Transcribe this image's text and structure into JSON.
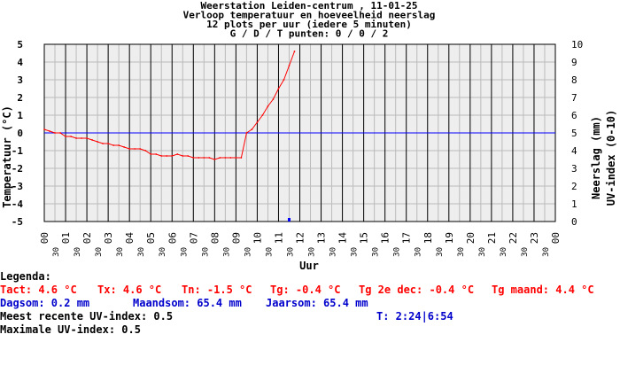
{
  "chart_data": {
    "type": "line",
    "title_lines": [
      "Weerstation Leiden-centrum , 11-01-25",
      "Verloop temperatuur en hoeveelheid neerslag",
      "12 plots per uur (iedere 5 minuten)",
      "G / D / T punten: 0 / 0 / 2"
    ],
    "xlabel": "Uur",
    "ylabel_left": "Temperatuur (°C)",
    "ylabel_right_1": "Neerslag (mm)",
    "ylabel_right_2": "UV-index (0-10)",
    "y_left_range": [
      -5,
      5
    ],
    "y_right_range": [
      0,
      10
    ],
    "y_left_ticks": [
      "5",
      "4",
      "3",
      "2",
      "1",
      "0",
      "-1",
      "-2",
      "-3",
      "-4",
      "-5"
    ],
    "y_right_ticks": [
      "10",
      "9",
      "8",
      "7",
      "6",
      "5",
      "4",
      "3",
      "2",
      "1",
      "0"
    ],
    "x_range_hours": [
      0,
      24
    ],
    "x_hour_labels": [
      "00",
      "01",
      "02",
      "03",
      "04",
      "05",
      "06",
      "07",
      "08",
      "09",
      "10",
      "11",
      "12",
      "13",
      "14",
      "15",
      "16",
      "17",
      "18",
      "19",
      "20",
      "21",
      "22",
      "23",
      "00"
    ],
    "x_half_label": "30",
    "grid": true,
    "zero_line_color": "#0000ff",
    "temperature_color": "#ff0000",
    "precip_color": "#0000ff",
    "series": [
      {
        "name": "Temperatuur",
        "unit": "°C",
        "x_hours": [
          0,
          0.25,
          0.5,
          0.75,
          1.0,
          1.25,
          1.5,
          1.75,
          2.0,
          2.25,
          2.5,
          2.75,
          3.0,
          3.25,
          3.5,
          3.75,
          4.0,
          4.25,
          4.5,
          4.75,
          5.0,
          5.25,
          5.5,
          5.75,
          6.0,
          6.25,
          6.5,
          6.75,
          7.0,
          7.25,
          7.5,
          7.75,
          8.0,
          8.25,
          8.5,
          8.75,
          9.0,
          9.25,
          9.5,
          9.75,
          10.0,
          10.25,
          10.5,
          10.75,
          11.0,
          11.25,
          11.5,
          11.75
        ],
        "values": [
          0.2,
          0.1,
          0.0,
          0.0,
          -0.2,
          -0.2,
          -0.3,
          -0.3,
          -0.3,
          -0.4,
          -0.5,
          -0.6,
          -0.6,
          -0.7,
          -0.7,
          -0.8,
          -0.9,
          -0.9,
          -0.9,
          -1.0,
          -1.2,
          -1.2,
          -1.3,
          -1.3,
          -1.3,
          -1.2,
          -1.3,
          -1.3,
          -1.4,
          -1.4,
          -1.4,
          -1.4,
          -1.5,
          -1.4,
          -1.4,
          -1.4,
          -1.4,
          -1.4,
          0.0,
          0.2,
          0.6,
          1.0,
          1.5,
          1.9,
          2.5,
          3.0,
          3.8,
          4.6
        ]
      },
      {
        "name": "Neerslag",
        "unit": "mm",
        "x_hours": [
          11.5
        ],
        "values": [
          0.2
        ]
      }
    ]
  },
  "legend": {
    "heading": "Legenda:",
    "tact": "Tact: 4.6 °C",
    "tx": "Tx: 4.6 °C",
    "tn": "Tn: -1.5 °C",
    "tg": "Tg: -0.4 °C",
    "tg2": "Tg 2e dec: -0.4 °C",
    "tgm": "Tg maand: 4.4 °C",
    "dagsom": "Dagsom: 0.2 mm",
    "maandsom": "Maandsom: 65.4 mm",
    "jaarsom": "Jaarsom: 65.4 mm",
    "uv_recent": "Meest recente UV-index: 0.5",
    "t_time": "T: 2:24|6:54",
    "uv_max": "Maximale UV-index: 0.5"
  }
}
